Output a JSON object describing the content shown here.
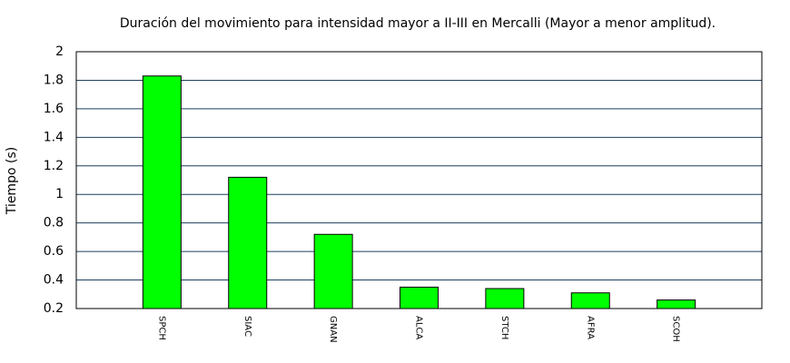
{
  "chart_data": {
    "type": "bar",
    "title": "Duración del movimiento para intensidad mayor a II-III en Mercalli (Mayor a menor amplitud).",
    "y_label": "Tiempo (s)",
    "categories": [
      "SPCH",
      "SIAC",
      "GNAN",
      "ALCA",
      "STCH",
      "AFRA",
      "SCOH"
    ],
    "values": [
      1.83,
      1.12,
      0.72,
      0.35,
      0.34,
      0.31,
      0.26
    ],
    "color": "#00ff00",
    "ylim": [
      0.2,
      2
    ],
    "yticks": [
      0.2,
      0.4,
      0.6,
      0.8,
      1,
      1.2,
      1.4,
      1.6,
      1.8,
      2
    ],
    "grid": true
  }
}
